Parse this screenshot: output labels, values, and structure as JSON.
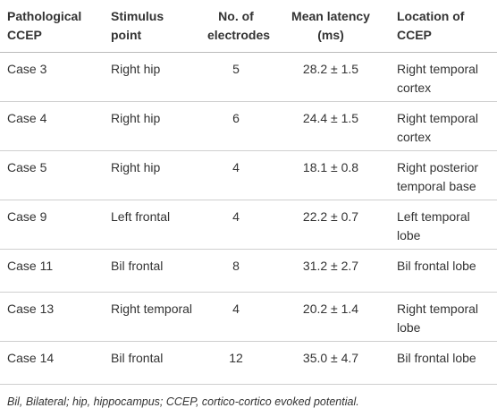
{
  "table": {
    "header": [
      "Pathological CCEP",
      "Stimulus point",
      "No. of electrodes",
      "Mean latency (ms)",
      "Location of CCEP"
    ],
    "rows": [
      [
        "Case 3",
        "Right hip",
        "5",
        "28.2 ± 1.5",
        "Right temporal cortex"
      ],
      [
        "Case 4",
        "Right hip",
        "6",
        "24.4 ± 1.5",
        "Right temporal cortex"
      ],
      [
        "Case 5",
        "Right hip",
        "4",
        "18.1 ± 0.8",
        "Right posterior temporal base"
      ],
      [
        "Case 9",
        "Left frontal",
        "4",
        "22.2 ± 0.7",
        "Left temporal lobe"
      ],
      [
        "Case 11",
        "Bil frontal",
        "8",
        "31.2 ± 2.7",
        "Bil frontal lobe"
      ],
      [
        "Case 13",
        "Right temporal",
        "4",
        "20.2 ± 1.4",
        "Right temporal lobe"
      ],
      [
        "Case 14",
        "Bil frontal",
        "12",
        "35.0 ± 4.7",
        "Bil frontal lobe"
      ]
    ],
    "footnote": "Bil, Bilateral; hip, hippocampus; CCEP, cortico-cortico evoked potential."
  }
}
